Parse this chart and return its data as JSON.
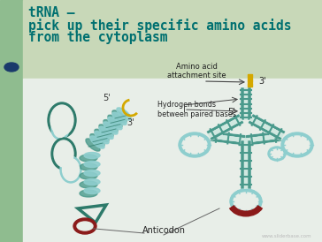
{
  "title_line1": "tRNA –",
  "title_line2": "pick up their specific amino acids",
  "title_line3": "from the cytoplasm",
  "title_color": "#007070",
  "background_color": "#ffffff",
  "left_bar_color": "#8fbc8f",
  "header_bg_color": "#c8d8b8",
  "content_bg_color": "#e8eee8",
  "bullet_color": "#1a3a6b",
  "teal_dark": "#2d7a6a",
  "teal_mid": "#4a9a8c",
  "teal_light": "#8ecece",
  "teal_very_light": "#b8dede",
  "red_dark": "#8b1a1a",
  "yellow": "#d4a800",
  "label_color": "#222222",
  "watermark": "www.sliderbase.com",
  "fig_width": 3.64,
  "fig_height": 2.74,
  "dpi": 100
}
